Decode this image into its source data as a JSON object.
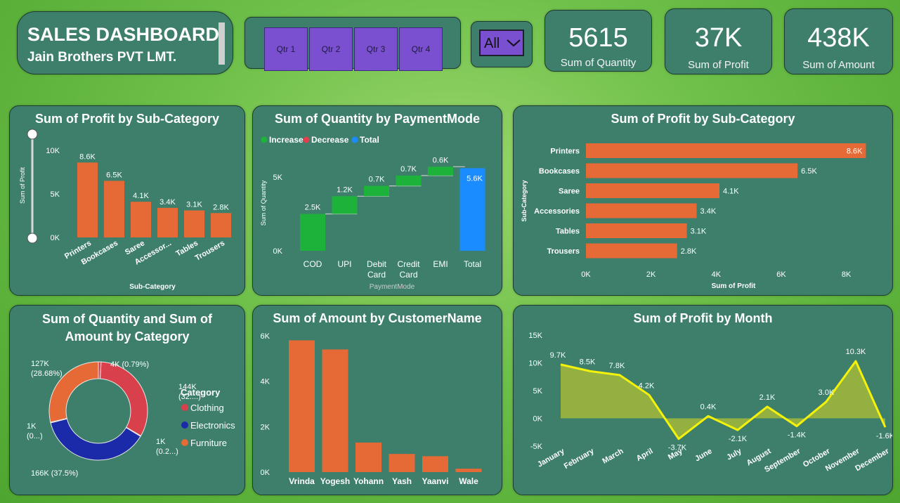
{
  "header": {
    "title": "SALES DASHBOARD",
    "subtitle": "Jain Brothers PVT LMT."
  },
  "slicer": {
    "quarters": [
      "Qtr 1",
      "Qtr 2",
      "Qtr 3",
      "Qtr 4"
    ],
    "dropdown_value": "All"
  },
  "kpis": [
    {
      "value": "5615",
      "label": "Sum of Quantity"
    },
    {
      "value": "37K",
      "label": "Sum of Profit"
    },
    {
      "value": "438K",
      "label": "Sum of Amount"
    }
  ],
  "colors": {
    "bar": "#e66a36",
    "increase": "#1db33b",
    "decrease": "#e0404d",
    "total": "#1a8cff",
    "clothing": "#d8404c",
    "electronics": "#1b2aa8",
    "furniture": "#e66a36",
    "line": "#f4f20a",
    "area": "#a3b83a"
  },
  "chart_data": [
    {
      "id": "profit_subcat_col",
      "type": "bar",
      "title": "Sum of Profit by Sub-Category",
      "xlabel": "Sub-Category",
      "ylabel": "Sum of Profit",
      "categories": [
        "Printers",
        "Bookcases",
        "Saree",
        "Accessor...",
        "Tables",
        "Trousers"
      ],
      "values": [
        8600,
        6500,
        4100,
        3400,
        3100,
        2800
      ],
      "labels": [
        "8.6K",
        "6.5K",
        "4.1K",
        "3.4K",
        "3.1K",
        "2.8K"
      ],
      "yticks": [
        "0K",
        "5K",
        "10K"
      ],
      "ylim": [
        0,
        10000
      ]
    },
    {
      "id": "qty_payment_waterfall",
      "type": "bar",
      "title": "Sum of Quantity by PaymentMode",
      "xlabel": "PaymentMode",
      "ylabel": "Sum of Quantity",
      "legend": [
        "Increase",
        "Decrease",
        "Total"
      ],
      "categories": [
        "COD",
        "UPI",
        "Debit Card",
        "Credit Card",
        "EMI",
        "Total"
      ],
      "values": [
        2500,
        1200,
        700,
        700,
        600,
        5600
      ],
      "labels": [
        "2.5K",
        "1.2K",
        "0.7K",
        "0.7K",
        "0.6K",
        "5.6K"
      ],
      "yticks": [
        "0K",
        "5K"
      ],
      "ylim": [
        0,
        6000
      ]
    },
    {
      "id": "profit_subcat_hbar",
      "type": "bar",
      "title": "Sum of Profit by Sub-Category",
      "xlabel": "Sum of Profit",
      "ylabel": "Sub-Category",
      "categories": [
        "Printers",
        "Bookcases",
        "Saree",
        "Accessories",
        "Tables",
        "Trousers"
      ],
      "values": [
        8600,
        6500,
        4100,
        3400,
        3100,
        2800
      ],
      "labels": [
        "8.6K",
        "6.5K",
        "4.1K",
        "3.4K",
        "3.1K",
        "2.8K"
      ],
      "xticks": [
        "0K",
        "2K",
        "4K",
        "6K",
        "8K"
      ],
      "xlim": [
        0,
        9000
      ]
    },
    {
      "id": "qty_amount_category_donut",
      "type": "pie",
      "title": "Sum of Quantity and Sum of Amount by Category",
      "legend_title": "Category",
      "legend": [
        "Clothing",
        "Electronics",
        "Furniture"
      ],
      "slices": [
        {
          "category": "Clothing",
          "value": 4,
          "label": "4K (0.79%)"
        },
        {
          "category": "Clothing",
          "value": 144,
          "label": "144K (32....)"
        },
        {
          "category": "Electronics",
          "value": 1,
          "label": "1K (0.2...)"
        },
        {
          "category": "Electronics",
          "value": 166,
          "label": "166K (37.5%)"
        },
        {
          "category": "Furniture",
          "value": 1,
          "label": "1K (0...)"
        },
        {
          "category": "Furniture",
          "value": 127,
          "label": "127K (28.68%)"
        }
      ]
    },
    {
      "id": "amount_customer_col",
      "type": "bar",
      "title": "Sum of Amount by CustomerName",
      "categories": [
        "Vrinda",
        "Yogesh",
        "Yohann",
        "Yash",
        "Yaanvi",
        "Wale"
      ],
      "values": [
        5800,
        5400,
        1300,
        800,
        700,
        150
      ],
      "yticks": [
        "0K",
        "2K",
        "4K",
        "6K"
      ],
      "ylim": [
        0,
        6000
      ]
    },
    {
      "id": "profit_month_line",
      "type": "line",
      "title": "Sum of Profit by Month",
      "categories": [
        "January",
        "February",
        "March",
        "April",
        "May",
        "June",
        "July",
        "August",
        "September",
        "October",
        "November",
        "December"
      ],
      "values": [
        9700,
        8500,
        7800,
        4200,
        -3700,
        400,
        -2100,
        2100,
        -1400,
        3000,
        10300,
        -1600
      ],
      "labels": [
        "9.7K",
        "8.5K",
        "7.8K",
        "4.2K",
        "-3.7K",
        "0.4K",
        "-2.1K",
        "2.1K",
        "-1.4K",
        "3.0K",
        "10.3K",
        "-1.6K"
      ],
      "yticks": [
        "-5K",
        "0K",
        "5K",
        "10K",
        "15K"
      ],
      "ylim": [
        -5000,
        15000
      ]
    }
  ]
}
